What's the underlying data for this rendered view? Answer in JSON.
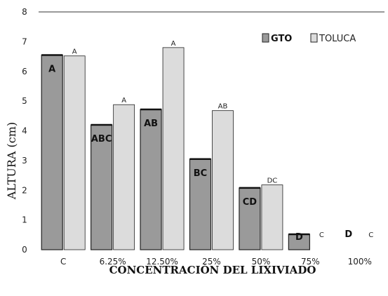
{
  "chart_data": {
    "type": "bar",
    "xlabel": "CONCENTRACIÓN DEL LIXIVIADO",
    "ylabel": "ALTURA (cm)",
    "ylim": [
      0,
      8
    ],
    "yticks": [
      0,
      1,
      2,
      3,
      4,
      5,
      6,
      7,
      8
    ],
    "categories": [
      "C",
      "6.25%",
      "12.50%",
      "25%",
      "50%",
      "75%",
      "100%"
    ],
    "legend_position": "top-right",
    "series": [
      {
        "name": "GTO",
        "color": "#9a9a9a",
        "values": [
          6.55,
          4.2,
          4.72,
          3.05,
          2.08,
          0.52,
          0
        ],
        "letters": [
          "A",
          "ABC",
          "AB",
          "BC",
          "CD",
          "D",
          "D"
        ]
      },
      {
        "name": "TOLUCA",
        "color": "#dcdcdc",
        "values": [
          6.52,
          4.88,
          6.8,
          4.68,
          2.18,
          0,
          0
        ],
        "letters": [
          "A",
          "A",
          "A",
          "AB",
          "DC",
          "C",
          "C"
        ]
      }
    ],
    "grid": false
  }
}
